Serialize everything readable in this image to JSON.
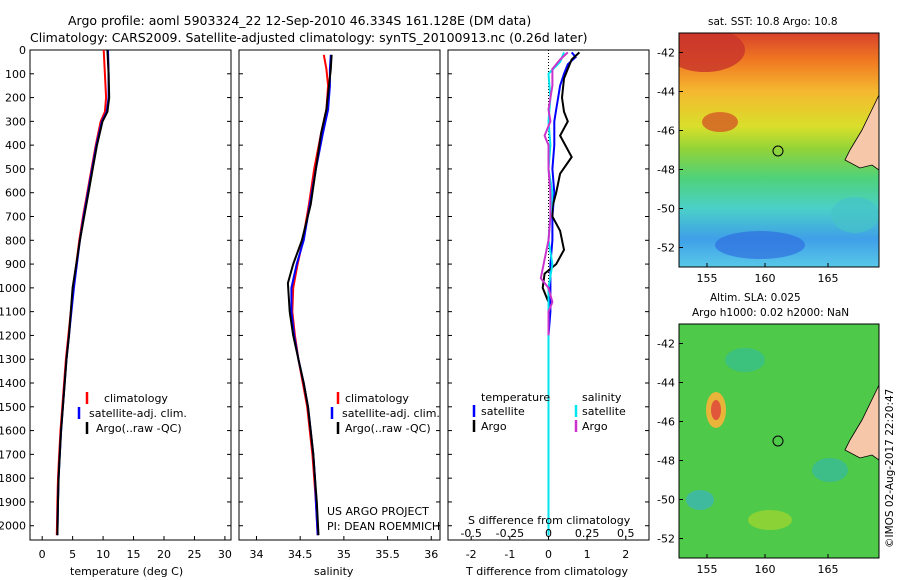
{
  "header": {
    "title_line1": "Argo profile: aoml 5903324_22 12-Sep-2010 46.334S 161.128E (DM data)",
    "title_line2": "Climatology: CARS2009. Satellite-adjusted climatology: synTS_20100913.nc (0.26d later)"
  },
  "credit": "US ARGO PROJECT",
  "pi": "PI: DEAN ROEMMICH",
  "watermark": "©IMOS 02-Aug-2017 22:20:47",
  "colors": {
    "climatology": "#ff0000",
    "satellite": "#0000ff",
    "argo": "#000000",
    "sal_satellite": "#00e5ee",
    "sal_argo": "#cc33cc"
  },
  "chart_data": [
    {
      "type": "line",
      "id": "temperature",
      "xlabel": "temperature (deg C)",
      "ylabel": "",
      "xlim": [
        -2,
        31
      ],
      "ylim": [
        2060,
        0
      ],
      "xticks": [
        0,
        5,
        10,
        15,
        20,
        25,
        30
      ],
      "yticks": [
        0,
        100,
        200,
        300,
        400,
        500,
        600,
        700,
        800,
        900,
        1000,
        1100,
        1200,
        1300,
        1400,
        1500,
        1600,
        1700,
        1800,
        1900,
        2000
      ],
      "legend": [
        "climatology",
        "satellite-adj. clim.",
        "Argo(..raw -QC)"
      ],
      "legend_position": "center-right",
      "series": [
        {
          "name": "climatology",
          "color": "#ff0000",
          "points": [
            [
              10.1,
              0
            ],
            [
              10.3,
              100
            ],
            [
              10.5,
              200
            ],
            [
              10.3,
              260
            ],
            [
              9.6,
              300
            ],
            [
              8.8,
              400
            ],
            [
              8.1,
              500
            ],
            [
              7.4,
              600
            ],
            [
              6.7,
              700
            ],
            [
              6.1,
              800
            ],
            [
              5.6,
              900
            ],
            [
              5.1,
              1000
            ],
            [
              4.7,
              1100
            ],
            [
              4.3,
              1200
            ],
            [
              3.9,
              1300
            ],
            [
              3.6,
              1400
            ],
            [
              3.3,
              1500
            ],
            [
              3.0,
              1600
            ],
            [
              2.8,
              1700
            ],
            [
              2.6,
              1800
            ],
            [
              2.5,
              1900
            ],
            [
              2.4,
              2040
            ]
          ]
        },
        {
          "name": "satellite-adj. clim.",
          "color": "#0000ff",
          "points": [
            [
              10.8,
              0
            ],
            [
              10.9,
              100
            ],
            [
              10.9,
              200
            ],
            [
              10.6,
              260
            ],
            [
              9.8,
              300
            ],
            [
              8.9,
              400
            ],
            [
              8.2,
              500
            ],
            [
              7.5,
              600
            ],
            [
              6.8,
              700
            ],
            [
              6.2,
              800
            ],
            [
              5.7,
              900
            ],
            [
              5.2,
              1000
            ],
            [
              4.8,
              1100
            ],
            [
              4.4,
              1200
            ],
            [
              4.0,
              1300
            ],
            [
              3.7,
              1400
            ],
            [
              3.4,
              1500
            ],
            [
              3.1,
              1600
            ],
            [
              2.9,
              1700
            ],
            [
              2.7,
              1800
            ],
            [
              2.6,
              1900
            ],
            [
              2.5,
              2040
            ]
          ]
        },
        {
          "name": "Argo(..raw -QC)",
          "color": "#000000",
          "points": [
            [
              10.7,
              0
            ],
            [
              10.9,
              100
            ],
            [
              11.0,
              200
            ],
            [
              10.7,
              260
            ],
            [
              9.9,
              300
            ],
            [
              9.0,
              400
            ],
            [
              8.3,
              500
            ],
            [
              7.6,
              600
            ],
            [
              6.9,
              700
            ],
            [
              6.2,
              800
            ],
            [
              5.6,
              900
            ],
            [
              5.0,
              1000
            ],
            [
              4.7,
              1100
            ],
            [
              4.4,
              1200
            ],
            [
              4.0,
              1300
            ],
            [
              3.7,
              1400
            ],
            [
              3.4,
              1500
            ],
            [
              3.1,
              1600
            ],
            [
              2.9,
              1700
            ],
            [
              2.7,
              1800
            ],
            [
              2.6,
              1900
            ],
            [
              2.5,
              2040
            ]
          ]
        }
      ]
    },
    {
      "type": "line",
      "id": "salinity",
      "xlabel": "salinity",
      "xlim": [
        33.8,
        36.1
      ],
      "ylim": [
        2060,
        0
      ],
      "xticks": [
        34,
        34.5,
        35,
        35.5,
        36
      ],
      "legend": [
        "climatology",
        "satellite-adj. clim.",
        "Argo(..raw -QC)"
      ],
      "legend_position": "center-right",
      "series": [
        {
          "name": "climatology",
          "color": "#ff0000",
          "points": [
            [
              34.77,
              20
            ],
            [
              34.8,
              80
            ],
            [
              34.82,
              150
            ],
            [
              34.8,
              250
            ],
            [
              34.74,
              350
            ],
            [
              34.66,
              500
            ],
            [
              34.6,
              650
            ],
            [
              34.53,
              800
            ],
            [
              34.47,
              900
            ],
            [
              34.42,
              1000
            ],
            [
              34.41,
              1100
            ],
            [
              34.44,
              1200
            ],
            [
              34.48,
              1300
            ],
            [
              34.53,
              1400
            ],
            [
              34.58,
              1500
            ],
            [
              34.61,
              1600
            ],
            [
              34.64,
              1700
            ],
            [
              34.66,
              1800
            ],
            [
              34.68,
              1900
            ],
            [
              34.7,
              2040
            ]
          ]
        },
        {
          "name": "satellite-adj. clim.",
          "color": "#0000ff",
          "points": [
            [
              34.85,
              20
            ],
            [
              34.84,
              80
            ],
            [
              34.84,
              150
            ],
            [
              34.82,
              250
            ],
            [
              34.76,
              350
            ],
            [
              34.68,
              500
            ],
            [
              34.61,
              650
            ],
            [
              34.54,
              800
            ],
            [
              34.46,
              900
            ],
            [
              34.4,
              1000
            ],
            [
              34.4,
              1100
            ],
            [
              34.43,
              1200
            ],
            [
              34.48,
              1300
            ],
            [
              34.54,
              1400
            ],
            [
              34.59,
              1500
            ],
            [
              34.62,
              1600
            ],
            [
              34.65,
              1700
            ],
            [
              34.67,
              1800
            ],
            [
              34.68,
              1900
            ],
            [
              34.7,
              2040
            ]
          ]
        },
        {
          "name": "Argo(..raw -QC)",
          "color": "#000000",
          "points": [
            [
              34.86,
              20
            ],
            [
              34.85,
              80
            ],
            [
              34.83,
              150
            ],
            [
              34.8,
              250
            ],
            [
              34.74,
              350
            ],
            [
              34.68,
              500
            ],
            [
              34.62,
              650
            ],
            [
              34.52,
              800
            ],
            [
              34.42,
              900
            ],
            [
              34.36,
              980
            ],
            [
              34.38,
              1100
            ],
            [
              34.42,
              1200
            ],
            [
              34.48,
              1300
            ],
            [
              34.54,
              1400
            ],
            [
              34.59,
              1500
            ],
            [
              34.62,
              1600
            ],
            [
              34.65,
              1700
            ],
            [
              34.67,
              1800
            ],
            [
              34.69,
              1900
            ],
            [
              34.71,
              2040
            ]
          ]
        }
      ]
    },
    {
      "type": "line",
      "id": "difference",
      "xlabel": "T difference from climatology",
      "xlabel2": "S difference from climatology",
      "xlim": [
        -2.6,
        2.6
      ],
      "ylim": [
        2060,
        0
      ],
      "xticks": [
        -2,
        -1,
        0,
        1,
        2
      ],
      "xticks2_labels": [
        "-0.5",
        "-0.25",
        "0",
        "0.25",
        "0.5"
      ],
      "legend_temperature": {
        "header": "temperature",
        "satellite": "satellite",
        "argo": "Argo"
      },
      "legend_salinity": {
        "header": "salinity",
        "satellite": "satellite",
        "argo": "Argo"
      },
      "series": [
        {
          "name": "satellite",
          "color": "#0000ff",
          "points": [
            [
              0.6,
              10
            ],
            [
              0.7,
              30
            ],
            [
              0.5,
              60
            ],
            [
              0.4,
              100
            ],
            [
              0.3,
              150
            ],
            [
              0.2,
              250
            ],
            [
              0.15,
              300
            ],
            [
              0.15,
              400
            ],
            [
              0.1,
              500
            ],
            [
              0.15,
              600
            ],
            [
              0.1,
              700
            ],
            [
              0.1,
              800
            ],
            [
              0.05,
              900
            ],
            [
              0.05,
              1000
            ],
            [
              0.05,
              1100
            ],
            [
              0.0,
              1200
            ],
            [
              0.0,
              1400
            ],
            [
              0.0,
              1600
            ],
            [
              0.0,
              1800
            ],
            [
              0.0,
              2040
            ]
          ]
        },
        {
          "name": "Argo",
          "color": "#000000",
          "points": [
            [
              0.8,
              10
            ],
            [
              0.6,
              40
            ],
            [
              0.5,
              80
            ],
            [
              0.4,
              120
            ],
            [
              0.35,
              200
            ],
            [
              0.4,
              260
            ],
            [
              0.5,
              300
            ],
            [
              0.3,
              360
            ],
            [
              0.6,
              450
            ],
            [
              0.3,
              520
            ],
            [
              0.2,
              600
            ],
            [
              0.1,
              660
            ],
            [
              0.1,
              700
            ],
            [
              0.3,
              760
            ],
            [
              0.4,
              840
            ],
            [
              0.2,
              900
            ],
            [
              -0.1,
              940
            ],
            [
              -0.15,
              1000
            ],
            [
              0.0,
              1060
            ],
            [
              0.0,
              1200
            ],
            [
              0.0,
              1400
            ],
            [
              0.0,
              1600
            ],
            [
              0.0,
              1800
            ],
            [
              0.0,
              2040
            ]
          ]
        },
        {
          "name": "satellite S",
          "color": "#00e5ee",
          "points": [
            [
              0.4,
              10
            ],
            [
              0.3,
              50
            ],
            [
              0.0,
              100
            ],
            [
              0.05,
              200
            ],
            [
              0.0,
              300
            ],
            [
              0.05,
              400
            ],
            [
              0.0,
              500
            ],
            [
              0.1,
              600
            ],
            [
              0.05,
              700
            ],
            [
              0.0,
              800
            ],
            [
              0.1,
              900
            ],
            [
              0.0,
              1000
            ],
            [
              0.0,
              1100
            ],
            [
              0.0,
              1200
            ],
            [
              0.0,
              1400
            ],
            [
              0.0,
              1600
            ],
            [
              0.0,
              1800
            ],
            [
              0.0,
              2040
            ]
          ]
        },
        {
          "name": "Argo S",
          "color": "#cc33cc",
          "points": [
            [
              0.5,
              10
            ],
            [
              0.3,
              40
            ],
            [
              0.1,
              80
            ],
            [
              0.1,
              150
            ],
            [
              0.0,
              250
            ],
            [
              0.05,
              300
            ],
            [
              -0.1,
              360
            ],
            [
              0.0,
              400
            ],
            [
              0.0,
              500
            ],
            [
              0.05,
              600
            ],
            [
              0.05,
              700
            ],
            [
              0.0,
              800
            ],
            [
              -0.1,
              880
            ],
            [
              -0.2,
              960
            ],
            [
              0.0,
              1000
            ],
            [
              0.1,
              1060
            ],
            [
              0.0,
              1100
            ],
            [
              0.0,
              1200
            ]
          ]
        }
      ]
    }
  ],
  "maps": {
    "sst": {
      "title": "sat. SST: 10.8 Argo: 10.8",
      "xticks": [
        "155",
        "160",
        "165"
      ],
      "yticks": [
        "-42",
        "-44",
        "-46",
        "-48",
        "-50",
        "-52"
      ]
    },
    "sla": {
      "title_line1": "Altim. SLA: 0.025",
      "title_line2": "Argo h1000: 0.02 h2000: NaN",
      "xticks": [
        "155",
        "160",
        "165"
      ],
      "yticks": [
        "-42",
        "-44",
        "-46",
        "-48",
        "-50",
        "-52"
      ]
    }
  }
}
